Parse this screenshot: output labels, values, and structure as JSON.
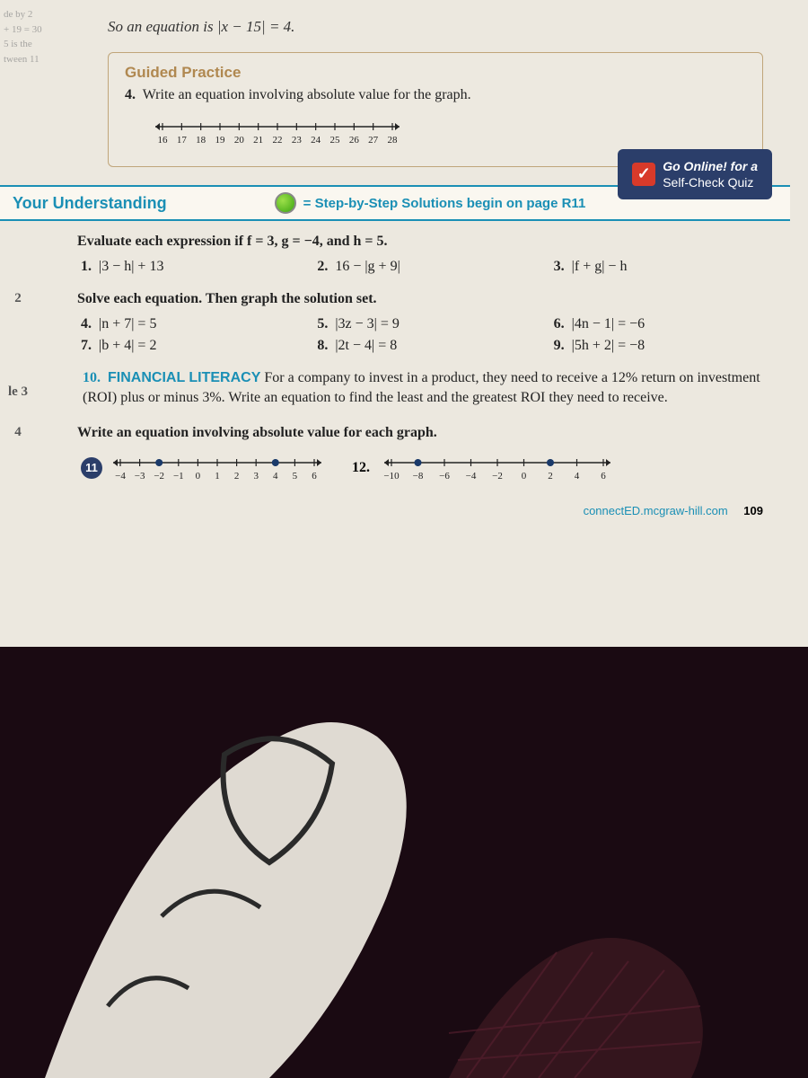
{
  "left_margin": {
    "l1": "de by 2",
    "l2": "+ 19 = 30",
    "l3": "5 is the",
    "l4": "tween 11"
  },
  "intro": "So an equation is |x − 15| = 4.",
  "guided": {
    "title": "Guided Practice",
    "question_num": "4.",
    "question_text": "Write an equation involving absolute value for the graph.",
    "ticks": [
      "16",
      "17",
      "18",
      "19",
      "20",
      "21",
      "22",
      "23",
      "24",
      "25",
      "26",
      "27",
      "28"
    ]
  },
  "section": {
    "title": "Your Understanding",
    "step_label": "= Step-by-Step Solutions begin on page R11",
    "online_line1": "Go Online! for a",
    "online_line2": "Self-Check Quiz",
    "check": "✓"
  },
  "eval": {
    "instr": "Evaluate each expression if f = 3, g = −4, and h = 5.",
    "p1": "|3 − h| + 13",
    "p2": "16 − |g + 9|",
    "p3": "|f + g| − h"
  },
  "solve": {
    "side": "2",
    "instr": "Solve each equation. Then graph the solution set.",
    "p4": "|n + 7| = 5",
    "p5": "|3z − 3| = 9",
    "p6": "|4n − 1| = −6",
    "p7": "|b + 4| = 2",
    "p8": "|2t − 4| = 8",
    "p9": "|5h + 2| = −8"
  },
  "word": {
    "side": "le 3",
    "num": "10.",
    "tag": "FINANCIAL LITERACY",
    "text": "For a company to invest in a product, they need to receive a 12% return on investment (ROI) plus or minus 3%. Write an equation to find the least and the greatest ROI they need to receive."
  },
  "graphs": {
    "side": "4",
    "instr": "Write an equation involving absolute value for each graph.",
    "p11_num": "11",
    "p11_ticks": [
      "−4",
      "−3",
      "−2",
      "−1",
      "0",
      "1",
      "2",
      "3",
      "4",
      "5",
      "6"
    ],
    "p11_points": [
      -2,
      4
    ],
    "p12_num": "12.",
    "p12_ticks": [
      "−10",
      "−8",
      "−6",
      "−4",
      "−2",
      "0",
      "2",
      "4",
      "6"
    ],
    "p12_points": [
      -8,
      2
    ]
  },
  "footer": {
    "url": "connectED.mcgraw-hill.com",
    "page": "109"
  },
  "colors": {
    "accent_blue": "#1a8fb5",
    "accent_tan": "#b08850",
    "badge_navy": "#2b3e6a",
    "badge_red": "#d83a2a"
  }
}
